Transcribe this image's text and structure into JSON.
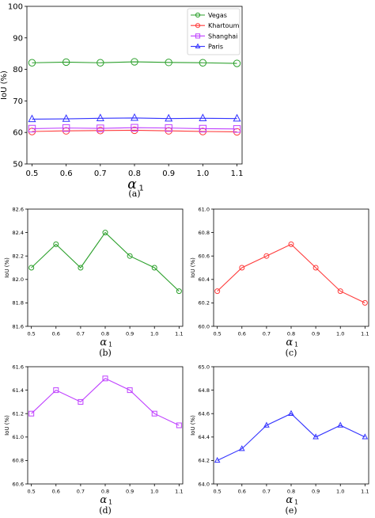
{
  "chart_data": [
    {
      "type": "line",
      "caption": "(a)",
      "ylabel": "IoU (%)",
      "xlabel_main": "α",
      "xlabel_sub": "1",
      "x": [
        0.5,
        0.6,
        0.7,
        0.8,
        0.9,
        1.0,
        1.1
      ],
      "xticks": [
        "0.5",
        "0.6",
        "0.7",
        "0.8",
        "0.9",
        "1.0",
        "1.1"
      ],
      "ylim": [
        50,
        100
      ],
      "yticks": [
        "50",
        "60",
        "70",
        "80",
        "90",
        "100"
      ],
      "legend_position": "top-right",
      "series": [
        {
          "name": "Vegas",
          "color": "#2ca02c",
          "marker": "circle",
          "values": [
            82.1,
            82.3,
            82.1,
            82.4,
            82.2,
            82.1,
            81.9
          ]
        },
        {
          "name": "Khartoum",
          "color": "#ff3b3b",
          "marker": "circle",
          "values": [
            60.3,
            60.5,
            60.6,
            60.7,
            60.5,
            60.3,
            60.2
          ]
        },
        {
          "name": "Shanghai",
          "color": "#bf40ff",
          "marker": "square",
          "values": [
            61.2,
            61.4,
            61.3,
            61.5,
            61.4,
            61.2,
            61.1
          ]
        },
        {
          "name": "Paris",
          "color": "#3333ff",
          "marker": "triangle",
          "values": [
            64.2,
            64.3,
            64.5,
            64.6,
            64.4,
            64.5,
            64.4
          ]
        }
      ]
    },
    {
      "type": "line",
      "caption": "(b)",
      "ylabel": "IoU (%)",
      "xlabel_main": "α",
      "xlabel_sub": "1",
      "x": [
        0.5,
        0.6,
        0.7,
        0.8,
        0.9,
        1.0,
        1.1
      ],
      "xticks": [
        "0.5",
        "0.6",
        "0.7",
        "0.8",
        "0.9",
        "1.0",
        "1.1"
      ],
      "ylim": [
        81.6,
        82.6
      ],
      "yticks": [
        "81.6",
        "81.8",
        "82.0",
        "82.2",
        "82.4",
        "82.6"
      ],
      "series": [
        {
          "color": "#2ca02c",
          "marker": "circle",
          "values": [
            82.1,
            82.3,
            82.1,
            82.4,
            82.2,
            82.1,
            81.9
          ]
        }
      ]
    },
    {
      "type": "line",
      "caption": "(c)",
      "ylabel": "IoU (%)",
      "xlabel_main": "α",
      "xlabel_sub": "1",
      "x": [
        0.5,
        0.6,
        0.7,
        0.8,
        0.9,
        1.0,
        1.1
      ],
      "xticks": [
        "0.5",
        "0.6",
        "0.7",
        "0.8",
        "0.9",
        "1.0",
        "1.1"
      ],
      "ylim": [
        60.0,
        61.0
      ],
      "yticks": [
        "60.0",
        "60.2",
        "60.4",
        "60.6",
        "60.8",
        "61.0"
      ],
      "series": [
        {
          "color": "#ff3b3b",
          "marker": "circle",
          "values": [
            60.3,
            60.5,
            60.6,
            60.7,
            60.5,
            60.3,
            60.2
          ]
        }
      ]
    },
    {
      "type": "line",
      "caption": "(d)",
      "ylabel": "IoU (%)",
      "xlabel_main": "α",
      "xlabel_sub": "1",
      "x": [
        0.5,
        0.6,
        0.7,
        0.8,
        0.9,
        1.0,
        1.1
      ],
      "xticks": [
        "0.5",
        "0.6",
        "0.7",
        "0.8",
        "0.9",
        "1.0",
        "1.1"
      ],
      "ylim": [
        60.6,
        61.6
      ],
      "yticks": [
        "60.6",
        "60.8",
        "61.0",
        "61.2",
        "61.4",
        "61.6"
      ],
      "series": [
        {
          "color": "#bf40ff",
          "marker": "square",
          "values": [
            61.2,
            61.4,
            61.3,
            61.5,
            61.4,
            61.2,
            61.1
          ]
        }
      ]
    },
    {
      "type": "line",
      "caption": "(e)",
      "ylabel": "IoU (%)",
      "xlabel_main": "α",
      "xlabel_sub": "1",
      "x": [
        0.5,
        0.6,
        0.7,
        0.8,
        0.9,
        1.0,
        1.1
      ],
      "xticks": [
        "0.5",
        "0.6",
        "0.7",
        "0.8",
        "0.9",
        "1.0",
        "1.1"
      ],
      "ylim": [
        64.0,
        65.0
      ],
      "yticks": [
        "64.0",
        "64.2",
        "64.4",
        "64.6",
        "64.8",
        "65.0"
      ],
      "series": [
        {
          "color": "#3333ff",
          "marker": "triangle",
          "values": [
            64.2,
            64.3,
            64.5,
            64.6,
            64.4,
            64.5,
            64.4
          ]
        }
      ]
    }
  ]
}
